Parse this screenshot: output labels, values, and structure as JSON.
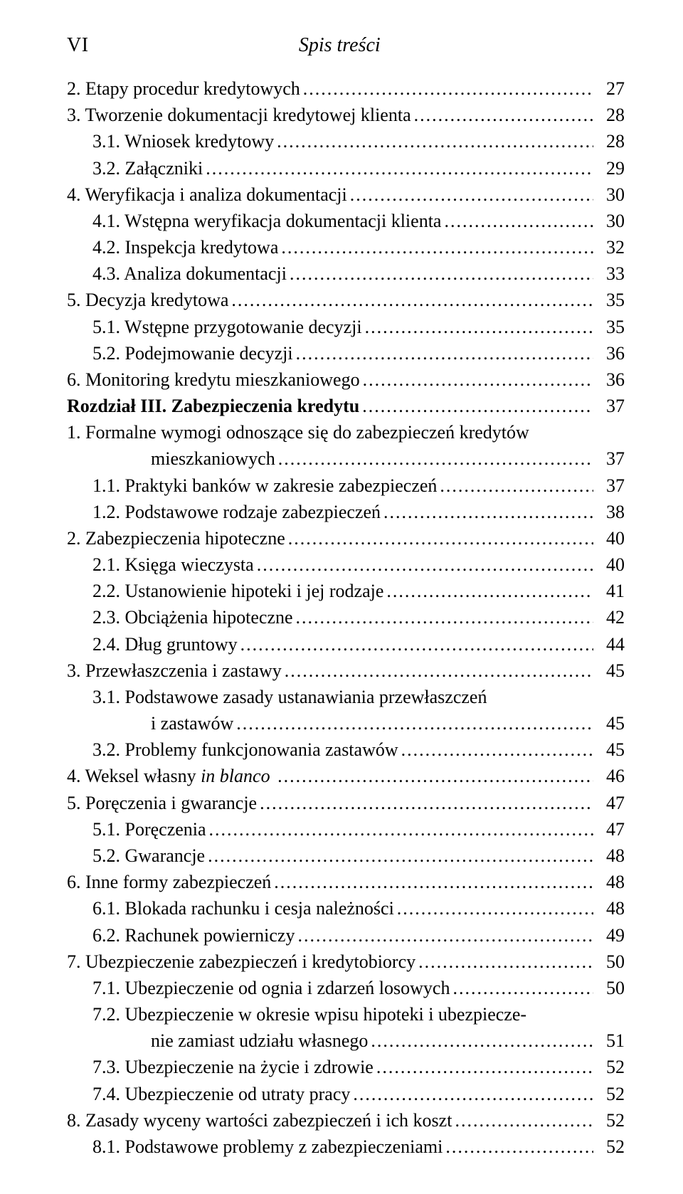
{
  "header": {
    "page_number": "VI",
    "title": "Spis treści"
  },
  "toc": [
    {
      "indent": 0,
      "text": "2. Etapy procedur kredytowych",
      "page": "27"
    },
    {
      "indent": 0,
      "text": "3. Tworzenie dokumentacji kredytowej klienta",
      "page": "28"
    },
    {
      "indent": 1,
      "text": "3.1. Wniosek kredytowy",
      "page": "28"
    },
    {
      "indent": 1,
      "text": "3.2. Załączniki",
      "page": "29"
    },
    {
      "indent": 0,
      "text": "4. Weryfikacja i analiza dokumentacji",
      "page": "30"
    },
    {
      "indent": 1,
      "text": "4.1. Wstępna weryfikacja dokumentacji klienta",
      "page": "30"
    },
    {
      "indent": 1,
      "text": "4.2. Inspekcja kredytowa",
      "page": "32"
    },
    {
      "indent": 1,
      "text": "4.3. Analiza dokumentacji",
      "page": "33"
    },
    {
      "indent": 0,
      "text": "5. Decyzja kredytowa",
      "page": "35"
    },
    {
      "indent": 1,
      "text": "5.1. Wstępne przygotowanie decyzji",
      "page": "35"
    },
    {
      "indent": 1,
      "text": "5.2. Podejmowanie decyzji",
      "page": "36"
    },
    {
      "indent": 0,
      "text": "6. Monitoring kredytu mieszkaniowego",
      "page": "36"
    },
    {
      "indent": -1,
      "bold": true,
      "prefix": "Rozdział III. ",
      "suffix": "Zabezpieczenia kredytu",
      "page": "37"
    },
    {
      "indent": 0,
      "text": "1. Formalne wymogi odnoszące się do zabezpieczeń kredytów"
    },
    {
      "indent": "cont",
      "text": "mieszkaniowych",
      "page": "37"
    },
    {
      "indent": 1,
      "text": "1.1. Praktyki banków w zakresie zabezpieczeń",
      "page": "37"
    },
    {
      "indent": 1,
      "text": "1.2. Podstawowe rodzaje zabezpieczeń",
      "page": "38"
    },
    {
      "indent": 0,
      "text": "2. Zabezpieczenia hipoteczne",
      "page": "40"
    },
    {
      "indent": 1,
      "text": "2.1. Księga wieczysta",
      "page": "40"
    },
    {
      "indent": 1,
      "text": "2.2. Ustanowienie hipoteki i jej rodzaje",
      "page": "41"
    },
    {
      "indent": 1,
      "text": "2.3. Obciążenia hipoteczne",
      "page": "42"
    },
    {
      "indent": 1,
      "text": "2.4. Dług gruntowy",
      "page": "44"
    },
    {
      "indent": 0,
      "text": "3. Przewłaszczenia i zastawy",
      "page": "45"
    },
    {
      "indent": 1,
      "text": "3.1. Podstawowe zasady ustanawiania przewłaszczeń"
    },
    {
      "indent": "cont",
      "text": "i zastawów",
      "page": "45"
    },
    {
      "indent": 1,
      "text": "3.2. Problemy funkcjonowania zastawów",
      "page": "45"
    },
    {
      "indent": 0,
      "prefix": "4. Weksel własny ",
      "italic_suffix": "in blanco ",
      "page": "46"
    },
    {
      "indent": 0,
      "text": "5. Poręczenia i gwarancje",
      "page": "47"
    },
    {
      "indent": 1,
      "text": "5.1. Poręczenia",
      "page": "47"
    },
    {
      "indent": 1,
      "text": "5.2. Gwarancje",
      "page": "48"
    },
    {
      "indent": 0,
      "text": "6. Inne formy zabezpieczeń",
      "page": "48"
    },
    {
      "indent": 1,
      "text": "6.1. Blokada rachunku i cesja należności",
      "page": "48"
    },
    {
      "indent": 1,
      "text": "6.2. Rachunek powierniczy",
      "page": "49"
    },
    {
      "indent": 0,
      "text": "7. Ubezpieczenie zabezpieczeń i kredytobiorcy",
      "page": "50"
    },
    {
      "indent": 1,
      "text": "7.1. Ubezpieczenie od ognia i zdarzeń losowych",
      "page": "50"
    },
    {
      "indent": 1,
      "text": "7.2. Ubezpieczenie w okresie wpisu hipoteki i ubezpiecze-"
    },
    {
      "indent": "cont",
      "text": "nie zamiast udziału własnego",
      "page": "51"
    },
    {
      "indent": 1,
      "text": "7.3. Ubezpieczenie na życie i zdrowie",
      "page": "52"
    },
    {
      "indent": 1,
      "text": "7.4. Ubezpieczenie od utraty pracy",
      "page": "52"
    },
    {
      "indent": 0,
      "text": "8. Zasady wyceny wartości zabezpieczeń i ich koszt",
      "page": "52"
    },
    {
      "indent": 1,
      "text": "8.1. Podstawowe problemy z zabezpieczeniami",
      "page": "52"
    }
  ]
}
